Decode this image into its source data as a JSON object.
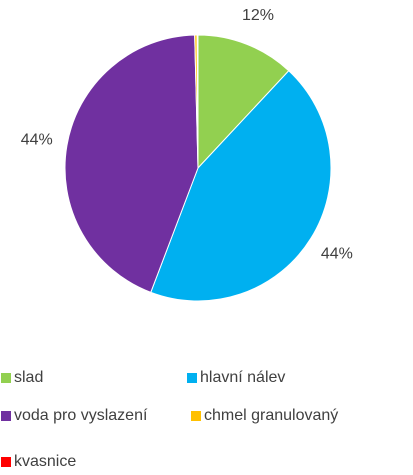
{
  "chart_data": {
    "type": "pie",
    "categories": [
      "slad",
      "hlavní nálev",
      "voda pro vyslazení",
      "chmel granulovaný",
      "kvasnice"
    ],
    "values": [
      12,
      44,
      44,
      0.3,
      0.1
    ],
    "value_labels": [
      "12%",
      "44%",
      "44%",
      null,
      null
    ],
    "colors": [
      "#92d050",
      "#00b0f0",
      "#7030a0",
      "#ffc000",
      "#ff0000"
    ],
    "legend": "bottom"
  }
}
